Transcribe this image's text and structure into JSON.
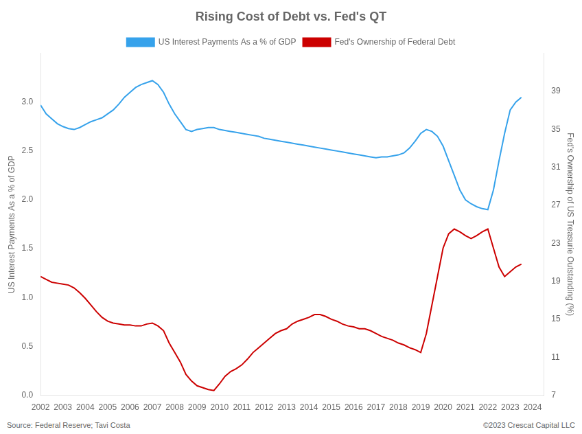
{
  "chart_data": {
    "type": "line",
    "title": "Rising Cost of Debt vs. Fed's QT",
    "xlabel": null,
    "ylabel": "US Interest Payments As a % of GDP",
    "y2label": "Fed's Ownership of US Treasurie Outstanding (%)",
    "annotations": [
      "Source: Federal Reserve; Tavi Costa",
      "©2023 Crescat Capital LLC"
    ],
    "legend": "top",
    "grid": false,
    "xlim": [
      2002,
      2024.5
    ],
    "xticks": [
      2002,
      2003,
      2004,
      2005,
      2006,
      2007,
      2008,
      2009,
      2010,
      2011,
      2012,
      2013,
      2014,
      2015,
      2016,
      2017,
      2018,
      2019,
      2020,
      2021,
      2022,
      2023,
      2024
    ],
    "ylim": [
      0,
      3.5
    ],
    "yticks": [
      {
        "value": 0,
        "label": "0.0"
      },
      0.5,
      {
        "value": 1.0,
        "label": "1.0"
      },
      1.5,
      {
        "value": 2.0,
        "label": "2.0"
      },
      2.5,
      {
        "value": 3.0,
        "label": "3.0"
      }
    ],
    "y2lim": [
      7,
      43
    ],
    "y2ticks": [
      7,
      11,
      15,
      19,
      23,
      27,
      31,
      35,
      39
    ],
    "x": [
      2002.0,
      2002.25,
      2002.5,
      2002.75,
      2003.0,
      2003.25,
      2003.5,
      2003.75,
      2004.0,
      2004.25,
      2004.5,
      2004.75,
      2005.0,
      2005.25,
      2005.5,
      2005.75,
      2006.0,
      2006.25,
      2006.5,
      2006.75,
      2007.0,
      2007.25,
      2007.5,
      2007.75,
      2008.0,
      2008.25,
      2008.5,
      2008.75,
      2009.0,
      2009.25,
      2009.5,
      2009.75,
      2010.0,
      2010.25,
      2010.5,
      2010.75,
      2011.0,
      2011.25,
      2011.5,
      2011.75,
      2012.0,
      2012.25,
      2012.5,
      2012.75,
      2013.0,
      2013.25,
      2013.5,
      2013.75,
      2014.0,
      2014.25,
      2014.5,
      2014.75,
      2015.0,
      2015.25,
      2015.5,
      2015.75,
      2016.0,
      2016.25,
      2016.5,
      2016.75,
      2017.0,
      2017.25,
      2017.5,
      2017.75,
      2018.0,
      2018.25,
      2018.5,
      2018.75,
      2019.0,
      2019.25,
      2019.5,
      2019.75,
      2020.0,
      2020.25,
      2020.5,
      2020.75,
      2021.0,
      2021.25,
      2021.5,
      2021.75,
      2022.0,
      2022.25,
      2022.5,
      2022.75,
      2023.0,
      2023.25,
      2023.5
    ],
    "series": [
      {
        "name": "US Interest Payments As a % of GDP",
        "color": "#36a2eb",
        "values": [
          2.97,
          2.88,
          2.83,
          2.78,
          2.75,
          2.73,
          2.72,
          2.74,
          2.77,
          2.8,
          2.82,
          2.84,
          2.88,
          2.92,
          2.98,
          3.05,
          3.1,
          3.15,
          3.18,
          3.2,
          3.22,
          3.18,
          3.1,
          2.98,
          2.88,
          2.8,
          2.72,
          2.7,
          2.72,
          2.73,
          2.74,
          2.74,
          2.72,
          2.71,
          2.7,
          2.69,
          2.68,
          2.67,
          2.66,
          2.65,
          2.63,
          2.62,
          2.61,
          2.6,
          2.59,
          2.58,
          2.57,
          2.56,
          2.55,
          2.54,
          2.53,
          2.52,
          2.51,
          2.5,
          2.49,
          2.48,
          2.47,
          2.46,
          2.45,
          2.44,
          2.43,
          2.44,
          2.44,
          2.45,
          2.46,
          2.48,
          2.53,
          2.6,
          2.68,
          2.72,
          2.7,
          2.65,
          2.55,
          2.4,
          2.25,
          2.1,
          2.0,
          1.96,
          1.93,
          1.91,
          1.9,
          2.1,
          2.4,
          2.68,
          2.92,
          3.0,
          3.05
        ]
      },
      {
        "name": "Fed's Ownership of Federal Debt",
        "color": "#cc0000",
        "axis": "y2",
        "values": [
          19.5,
          19.2,
          18.9,
          18.8,
          18.7,
          18.6,
          18.3,
          17.8,
          17.2,
          16.5,
          15.8,
          15.2,
          14.8,
          14.6,
          14.5,
          14.4,
          14.4,
          14.3,
          14.3,
          14.5,
          14.6,
          14.3,
          13.8,
          12.5,
          11.5,
          10.5,
          9.2,
          8.5,
          8.0,
          7.8,
          7.6,
          7.5,
          8.2,
          9.0,
          9.5,
          9.8,
          10.2,
          10.8,
          11.5,
          12.0,
          12.5,
          13.0,
          13.5,
          13.8,
          14.0,
          14.5,
          14.8,
          15.0,
          15.2,
          15.5,
          15.5,
          15.3,
          15.0,
          14.8,
          14.5,
          14.3,
          14.2,
          14.0,
          14.0,
          13.8,
          13.5,
          13.2,
          13.0,
          12.8,
          12.5,
          12.3,
          12.0,
          11.8,
          11.5,
          13.5,
          16.5,
          19.5,
          22.5,
          24.0,
          24.5,
          24.2,
          23.8,
          23.5,
          23.8,
          24.2,
          24.5,
          22.5,
          20.5,
          19.5,
          20.0,
          20.5,
          20.8
        ]
      }
    ]
  }
}
